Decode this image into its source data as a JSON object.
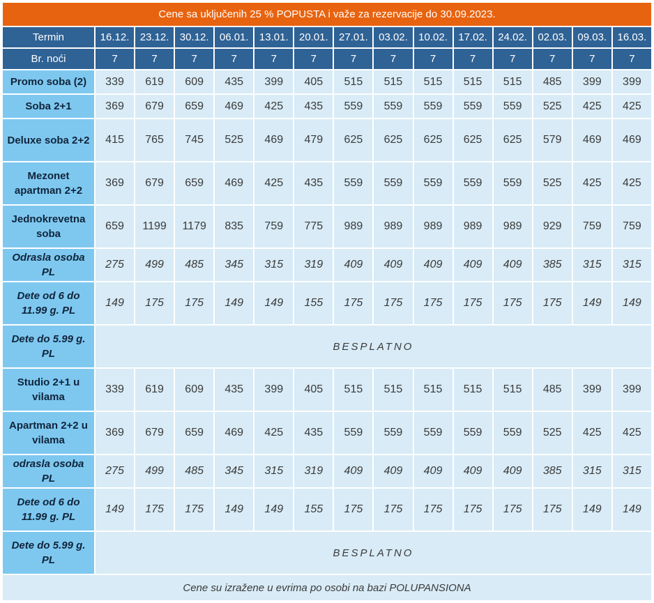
{
  "title": "Cene sa uključenih 25 % POPUSTA i važe za rezervacije  do 30.09.2023.",
  "termin_label": "Termin",
  "nights_label": "Br. noći",
  "dates": [
    "16.12.",
    "23.12.",
    "30.12.",
    "06.01.",
    "13.01.",
    "20.01.",
    "27.01.",
    "03.02.",
    "10.02.",
    "17.02.",
    "24.02.",
    "02.03.",
    "09.03.",
    "16.03."
  ],
  "nights": [
    "7",
    "7",
    "7",
    "7",
    "7",
    "7",
    "7",
    "7",
    "7",
    "7",
    "7",
    "7",
    "7",
    "7"
  ],
  "rows": [
    {
      "label": "Promo soba (2)",
      "italic": false,
      "values": [
        "339",
        "619",
        "609",
        "435",
        "399",
        "405",
        "515",
        "515",
        "515",
        "515",
        "515",
        "485",
        "399",
        "399"
      ]
    },
    {
      "label": "Soba 2+1",
      "italic": false,
      "values": [
        "369",
        "679",
        "659",
        "469",
        "425",
        "435",
        "559",
        "559",
        "559",
        "559",
        "559",
        "525",
        "425",
        "425"
      ]
    },
    {
      "label": "Deluxe soba 2+2",
      "italic": false,
      "values": [
        "415",
        "765",
        "745",
        "525",
        "469",
        "479",
        "625",
        "625",
        "625",
        "625",
        "625",
        "579",
        "469",
        "469"
      ]
    },
    {
      "label": "Mezonet apartman 2+2",
      "italic": false,
      "values": [
        "369",
        "679",
        "659",
        "469",
        "425",
        "435",
        "559",
        "559",
        "559",
        "559",
        "559",
        "525",
        "425",
        "425"
      ]
    },
    {
      "label": "Jednokrevetna soba",
      "italic": false,
      "values": [
        "659",
        "1199",
        "1179",
        "835",
        "759",
        "775",
        "989",
        "989",
        "989",
        "989",
        "989",
        "929",
        "759",
        "759"
      ]
    },
    {
      "label": "Odrasla osoba PL",
      "italic": true,
      "values": [
        "275",
        "499",
        "485",
        "345",
        "315",
        "319",
        "409",
        "409",
        "409",
        "409",
        "409",
        "385",
        "315",
        "315"
      ]
    },
    {
      "label": "Dete od 6 do 11.99 g. PL",
      "italic": true,
      "values": [
        "149",
        "175",
        "175",
        "149",
        "149",
        "155",
        "175",
        "175",
        "175",
        "175",
        "175",
        "175",
        "149",
        "149"
      ]
    },
    {
      "label": "Dete do 5.99 g. PL",
      "italic": true,
      "free": "BESPLATNO"
    },
    {
      "label": "Studio 2+1 u vilama",
      "italic": false,
      "values": [
        "339",
        "619",
        "609",
        "435",
        "399",
        "405",
        "515",
        "515",
        "515",
        "515",
        "515",
        "485",
        "399",
        "399"
      ]
    },
    {
      "label": "Apartman 2+2 u vilama",
      "italic": false,
      "values": [
        "369",
        "679",
        "659",
        "469",
        "425",
        "435",
        "559",
        "559",
        "559",
        "559",
        "559",
        "525",
        "425",
        "425"
      ]
    },
    {
      "label": "odrasla osoba PL",
      "italic": true,
      "values": [
        "275",
        "499",
        "485",
        "345",
        "315",
        "319",
        "409",
        "409",
        "409",
        "409",
        "409",
        "385",
        "315",
        "315"
      ]
    },
    {
      "label": "Dete od 6 do 11.99 g. PL",
      "italic": true,
      "values": [
        "149",
        "175",
        "175",
        "149",
        "149",
        "155",
        "175",
        "175",
        "175",
        "175",
        "175",
        "175",
        "149",
        "149"
      ]
    },
    {
      "label": "Dete do 5.99 g. PL",
      "italic": true,
      "free": "BESPLATNO"
    }
  ],
  "footer": "Cene su izražene u evrima po osobi na bazi POLUPANSIONA",
  "colors": {
    "title_bg": "#e8630f",
    "header_bg": "#2f6295",
    "label_bg": "#7ec8f0",
    "cell_bg": "#d8ebf6"
  }
}
